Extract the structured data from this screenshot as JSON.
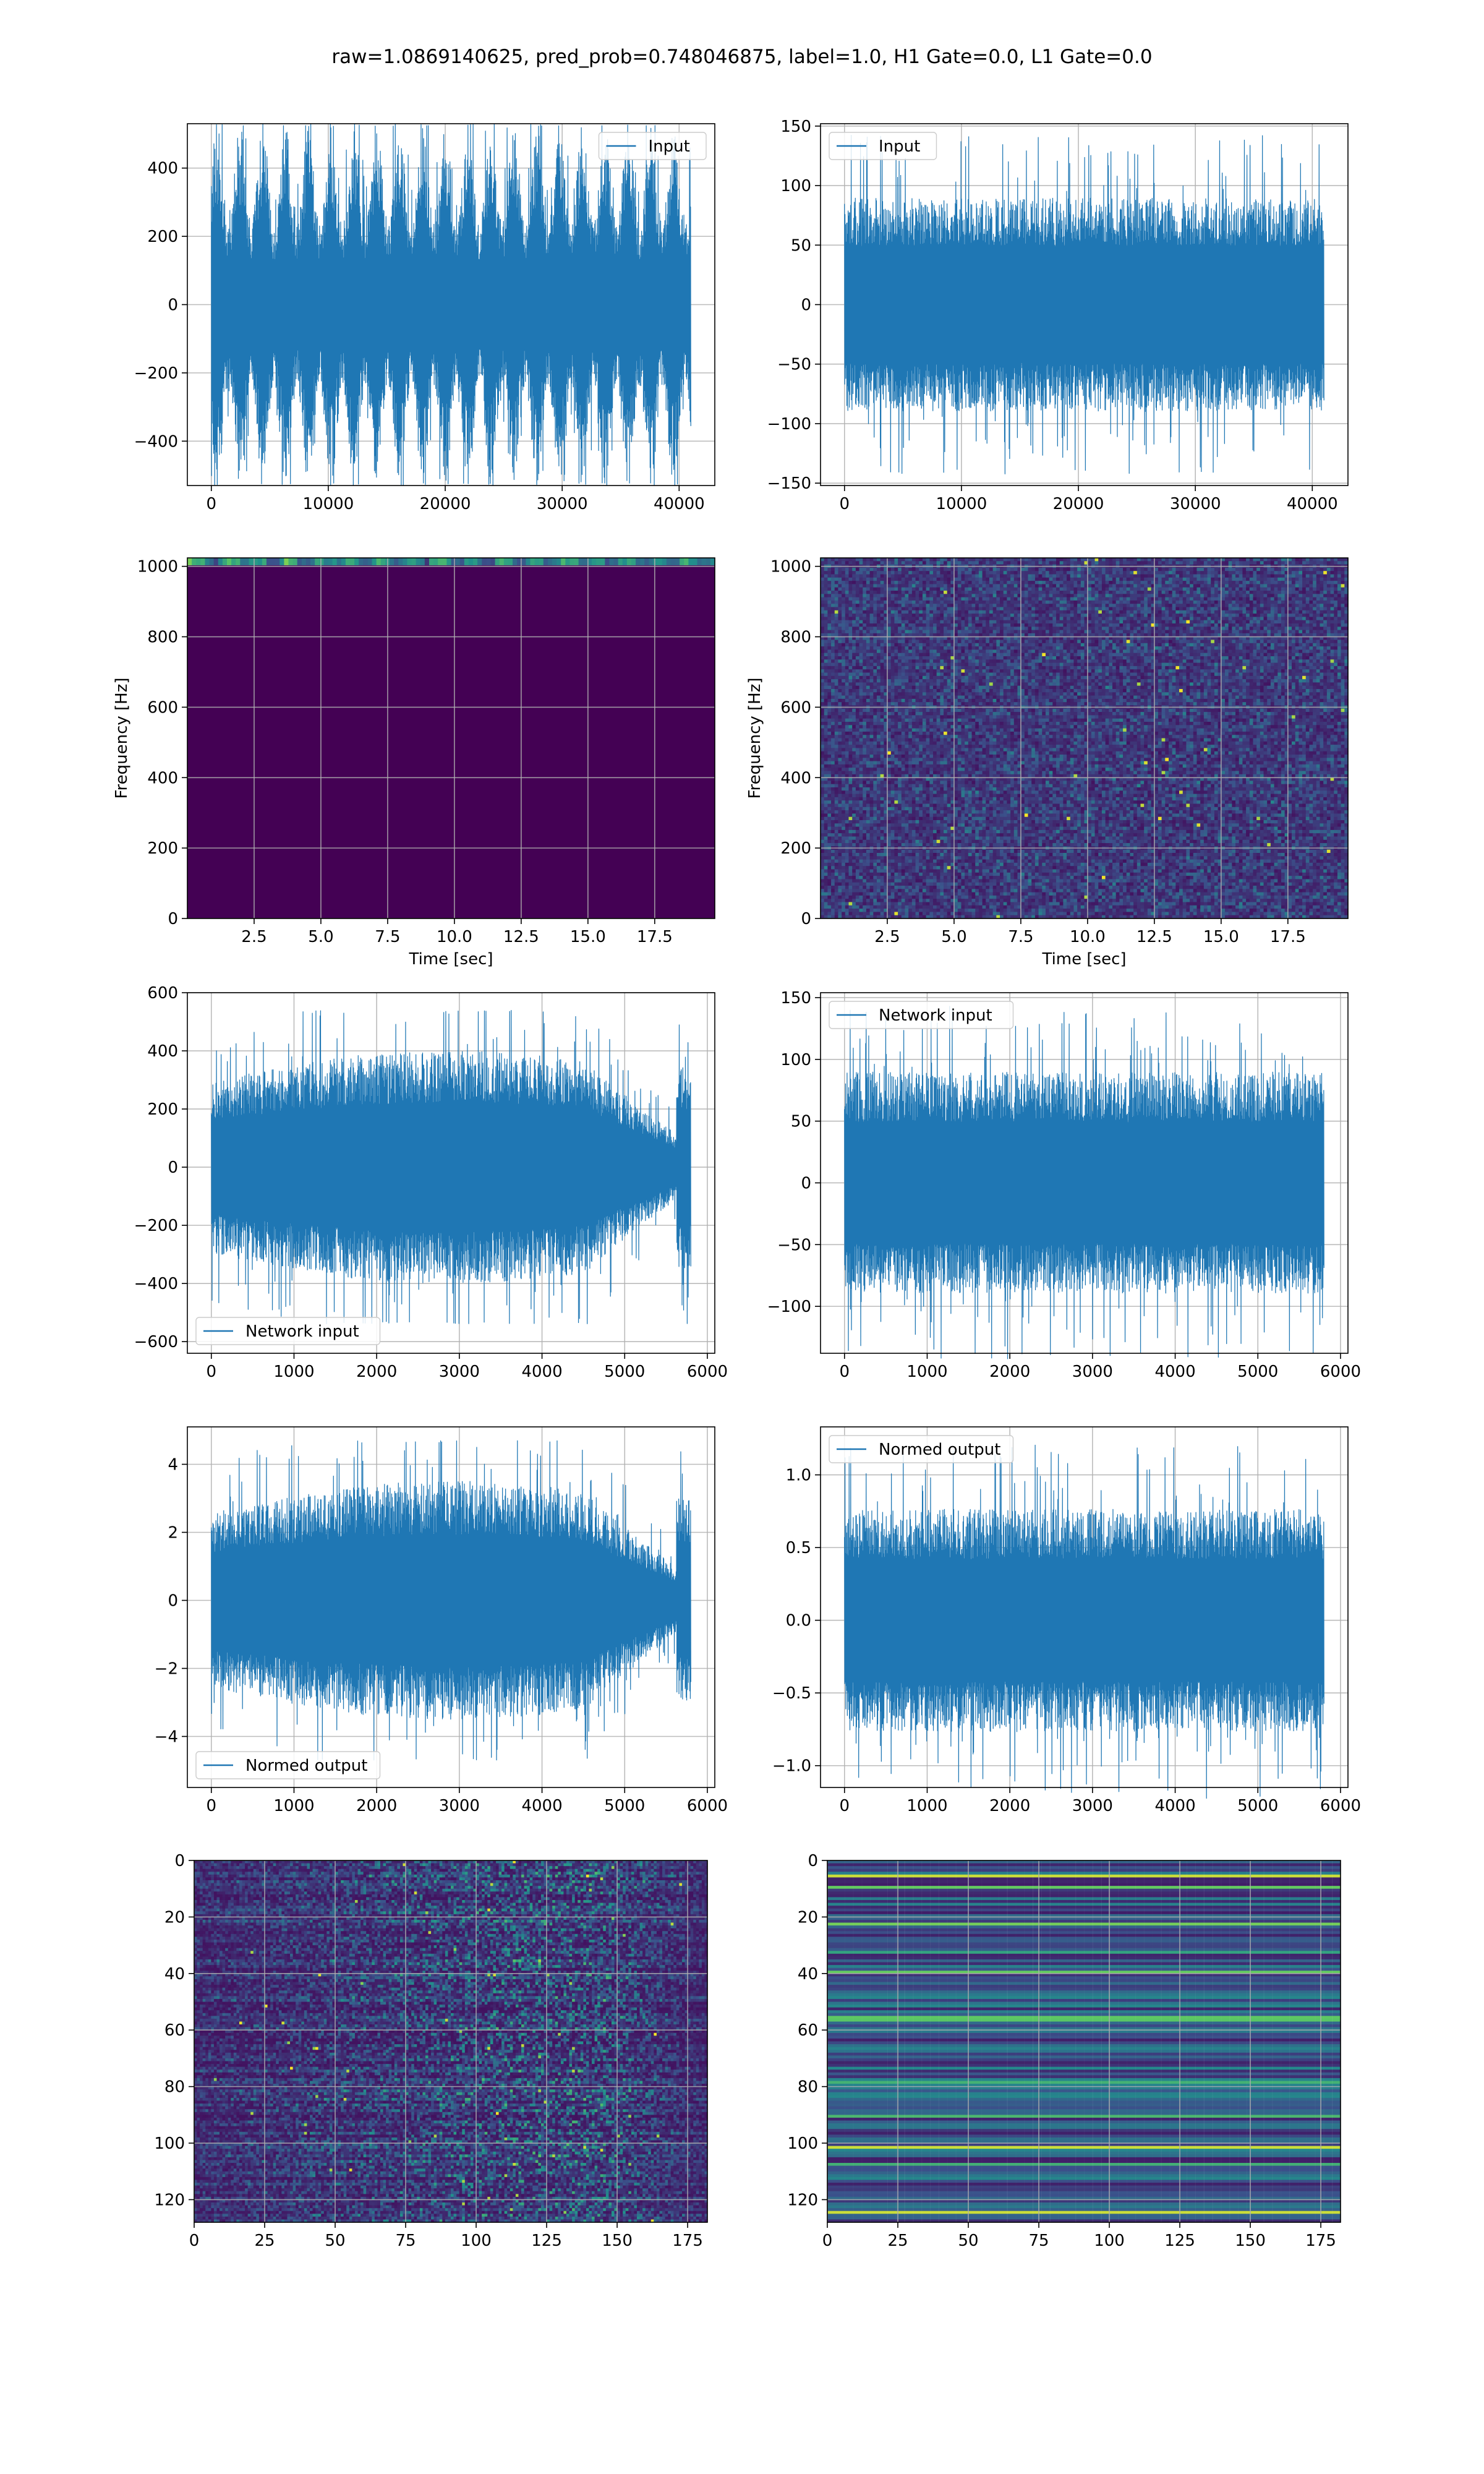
{
  "figure": {
    "title": "raw=1.0869140625, pred_prob=0.748046875, label=1.0, H1 Gate=0.0, L1 Gate=0.0"
  },
  "colors": {
    "series": "#1f77b4",
    "grid": "#b0b0b0",
    "axes": "#000000",
    "viridis_dark": "#440154",
    "viridis_blue": "#31688e",
    "viridis_teal": "#35b779",
    "viridis_yellow": "#fde725"
  },
  "chart_data": [
    {
      "id": "h1-input",
      "type": "line",
      "legend_loc": "upper right",
      "series": [
        {
          "name": "Input",
          "envelope": "modulated",
          "amplitude": 530
        }
      ],
      "x": [
        0,
        41000
      ],
      "xlim": [
        -2050,
        43050
      ],
      "ylim": [
        -530,
        530
      ],
      "xticks": [
        0,
        10000,
        20000,
        30000,
        40000
      ],
      "yticks": [
        -400,
        -200,
        0,
        200,
        400
      ],
      "xlabel": "",
      "ylabel": "",
      "grid": true
    },
    {
      "id": "l1-input",
      "type": "line",
      "legend_loc": "upper left",
      "series": [
        {
          "name": "Input",
          "envelope": "flat",
          "amplitude": 145
        }
      ],
      "x": [
        0,
        41000
      ],
      "xlim": [
        -2050,
        43050
      ],
      "ylim": [
        -152,
        152
      ],
      "xticks": [
        0,
        10000,
        20000,
        30000,
        40000
      ],
      "yticks": [
        -150,
        -100,
        -50,
        0,
        50,
        100,
        150
      ],
      "xlabel": "",
      "ylabel": "",
      "grid": true
    },
    {
      "id": "h1-spectrogram",
      "type": "heatmap",
      "pattern": "top-band",
      "xlim": [
        0,
        19.75
      ],
      "ylim": [
        0,
        1024
      ],
      "xticks": [
        2.5,
        5.0,
        7.5,
        10.0,
        12.5,
        15.0,
        17.5
      ],
      "yticks": [
        0,
        200,
        400,
        600,
        800,
        1000
      ],
      "xlabel": "Time [sec]",
      "ylabel": "Frequency [Hz]",
      "grid": true
    },
    {
      "id": "l1-spectrogram",
      "type": "heatmap",
      "pattern": "noise",
      "xlim": [
        0,
        19.75
      ],
      "ylim": [
        0,
        1024
      ],
      "xticks": [
        2.5,
        5.0,
        7.5,
        10.0,
        12.5,
        15.0,
        17.5
      ],
      "yticks": [
        0,
        200,
        400,
        600,
        800,
        1000
      ],
      "xlabel": "Time [sec]",
      "ylabel": "Frequency [Hz]",
      "grid": true
    },
    {
      "id": "h1-network-input",
      "type": "line",
      "legend_loc": "lower left",
      "series": [
        {
          "name": "Network input",
          "envelope": "taper",
          "amplitude": 540
        }
      ],
      "x": [
        0,
        5800
      ],
      "xlim": [
        -290,
        6090
      ],
      "ylim": [
        -640,
        600
      ],
      "xticks": [
        0,
        1000,
        2000,
        3000,
        4000,
        5000,
        6000
      ],
      "yticks": [
        -600,
        -400,
        -200,
        0,
        200,
        400,
        600
      ],
      "xlabel": "",
      "ylabel": "",
      "grid": true
    },
    {
      "id": "l1-network-input",
      "type": "line",
      "legend_loc": "upper left",
      "series": [
        {
          "name": "Network input",
          "envelope": "flat",
          "amplitude": 145
        }
      ],
      "x": [
        0,
        5800
      ],
      "xlim": [
        -290,
        6090
      ],
      "ylim": [
        -138,
        154
      ],
      "xticks": [
        0,
        1000,
        2000,
        3000,
        4000,
        5000,
        6000
      ],
      "yticks": [
        -100,
        -50,
        0,
        50,
        100,
        150
      ],
      "xlabel": "",
      "ylabel": "",
      "grid": true
    },
    {
      "id": "h1-normed-output",
      "type": "line",
      "legend_loc": "lower left",
      "series": [
        {
          "name": "Normed output",
          "envelope": "taper",
          "amplitude": 4.7
        }
      ],
      "x": [
        0,
        5800
      ],
      "xlim": [
        -290,
        6090
      ],
      "ylim": [
        -5.5,
        5.1
      ],
      "xticks": [
        0,
        1000,
        2000,
        3000,
        4000,
        5000,
        6000
      ],
      "yticks": [
        -4,
        -2,
        0,
        2,
        4
      ],
      "xlabel": "",
      "ylabel": "",
      "grid": true
    },
    {
      "id": "l1-normed-output",
      "type": "line",
      "legend_loc": "upper left",
      "series": [
        {
          "name": "Normed output",
          "envelope": "flat",
          "amplitude": 1.24
        }
      ],
      "x": [
        0,
        5800
      ],
      "xlim": [
        -290,
        6090
      ],
      "ylim": [
        -1.15,
        1.33
      ],
      "xticks": [
        0,
        1000,
        2000,
        3000,
        4000,
        5000,
        6000
      ],
      "yticks": [
        -1.0,
        -0.5,
        0.0,
        0.5,
        1.0
      ],
      "xlabel": "",
      "ylabel": "",
      "grid": true
    },
    {
      "id": "h1-feature-map",
      "type": "heatmap",
      "pattern": "speckle",
      "xlim": [
        0,
        182
      ],
      "ylim": [
        128,
        0
      ],
      "xticks": [
        0,
        25,
        50,
        75,
        100,
        125,
        150,
        175
      ],
      "yticks": [
        0,
        20,
        40,
        60,
        80,
        100,
        120
      ],
      "xlabel": "",
      "ylabel": "",
      "grid": true
    },
    {
      "id": "l1-feature-map",
      "type": "heatmap",
      "pattern": "rows",
      "xlim": [
        0,
        182
      ],
      "ylim": [
        128,
        0
      ],
      "xticks": [
        0,
        25,
        50,
        75,
        100,
        125,
        150,
        175
      ],
      "yticks": [
        0,
        20,
        40,
        60,
        80,
        100,
        120
      ],
      "xlabel": "",
      "ylabel": "",
      "grid": true
    }
  ]
}
